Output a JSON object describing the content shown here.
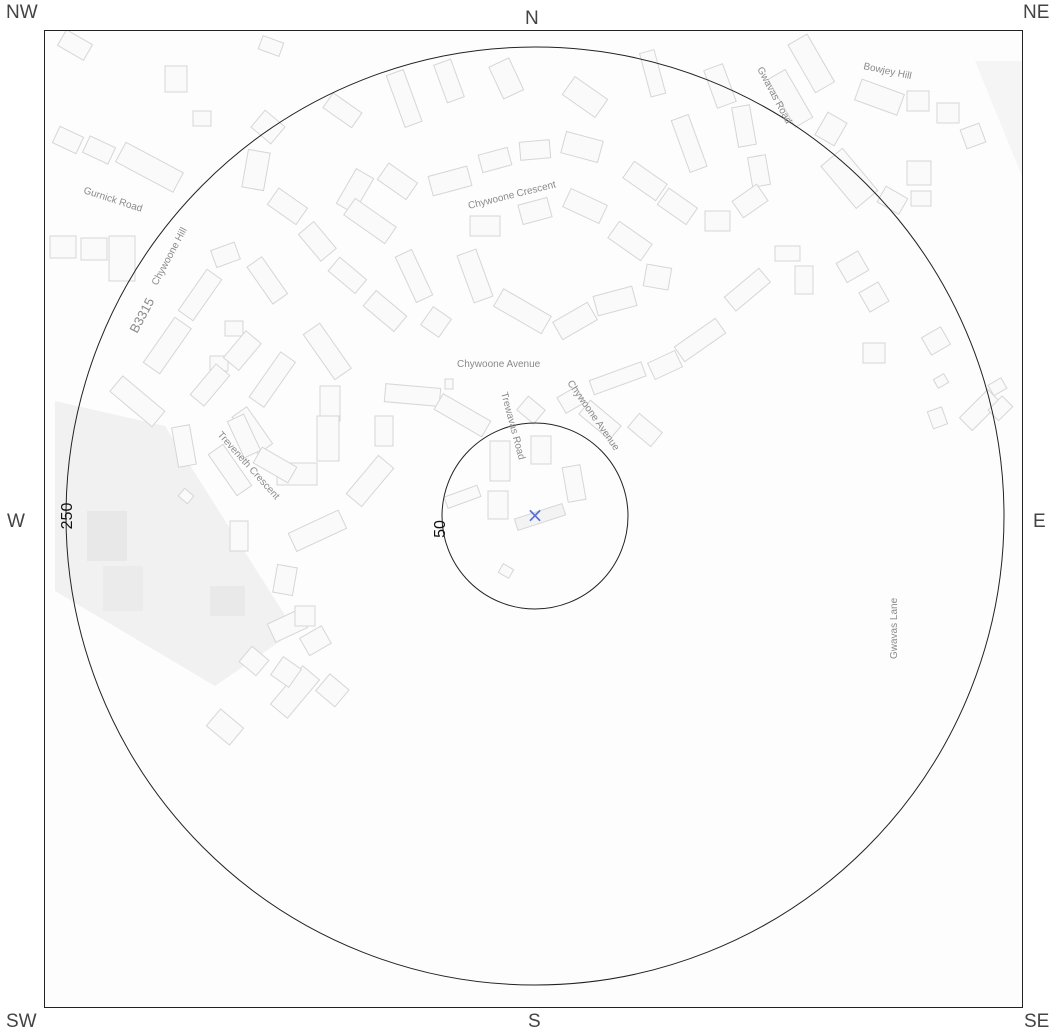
{
  "compass": {
    "nw": "NW",
    "n": "N",
    "ne": "NE",
    "w": "W",
    "e": "E",
    "sw": "SW",
    "s": "S",
    "se": "SE"
  },
  "rings": {
    "outer_label": "250",
    "inner_label": "50"
  },
  "marker": {
    "symbol": "×",
    "color": "#5b6fd6"
  },
  "streets": {
    "bowjey_hill": "Bowjey Hill",
    "gwavas_road": "Gwavas Road",
    "gurnick_road": "Gurnick Road",
    "chywoone_crescent": "Chywoone Crescent",
    "chywoone_hill": "Chywoone Hill",
    "b3315": "B3315",
    "chywoone_avenue": "Chywoone Avenue",
    "chywoone_avenue_2": "Chywoone Avenue",
    "trewavas_road": "Trewavas Road",
    "treveneth_crescent": "Treveneth Crescent",
    "gwavas_lane": "Gwavas Lane"
  },
  "colors": {
    "building_fill": "#fafafa",
    "building_stroke": "#d6d6d6",
    "field": "#efefef",
    "ring": "#222222"
  }
}
